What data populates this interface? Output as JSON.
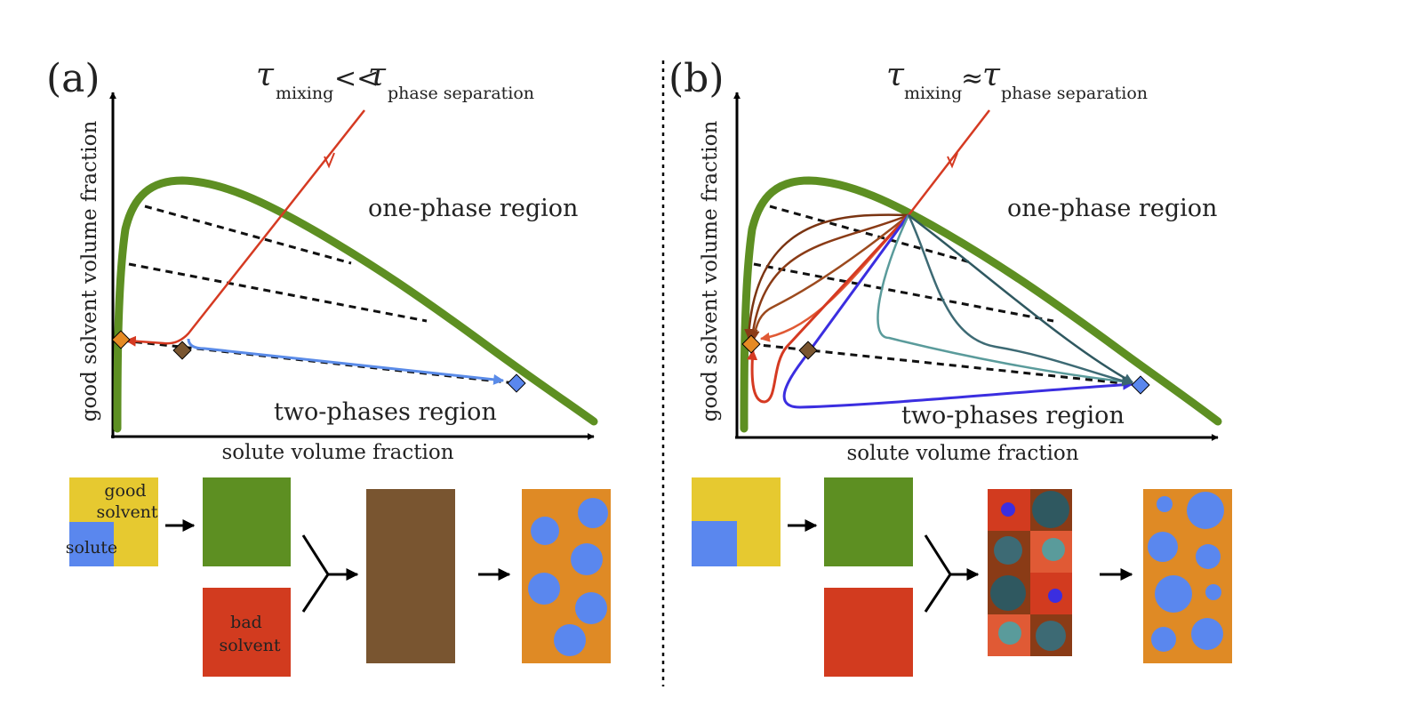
{
  "panel_a": {
    "tag": "(a)",
    "tau_symbol": "τ",
    "tau_sub_left": "mixing",
    "tau_relation": "<<",
    "tau_sub_right": "phase separation",
    "label_one_phase": "one-phase region",
    "label_two_phases": "two-phases region",
    "xlabel": "solute volume fraction",
    "ylabel": "good solvent volume fraction",
    "box_good_solvent": [
      "good",
      "solvent"
    ],
    "box_solute": "solute",
    "box_bad_solvent": [
      "bad",
      "solvent"
    ]
  },
  "panel_b": {
    "tag": "(b)",
    "tau_symbol": "τ",
    "tau_sub_left": "mixing",
    "tau_relation": "≈",
    "tau_sub_right": "phase separation",
    "label_one_phase": "one-phase region",
    "label_two_phases": "two-phases region",
    "xlabel": "solute volume fraction",
    "ylabel": "good solvent volume fraction"
  },
  "colors": {
    "binodal": "#5d8f22",
    "good_solvent": "#e6c930",
    "solute": "#5a87ee",
    "bad_solvent": "#d23b1f",
    "mixture": "#795530",
    "separated_matrix": "#df8a25",
    "trajectory_red": "#d53a22",
    "trajectory_blue": "#5a8be8",
    "trajectory_brown": "#8a3b16",
    "trajectory_teal": "#3b6670",
    "trajectory_violet": "#3b2ee0"
  }
}
